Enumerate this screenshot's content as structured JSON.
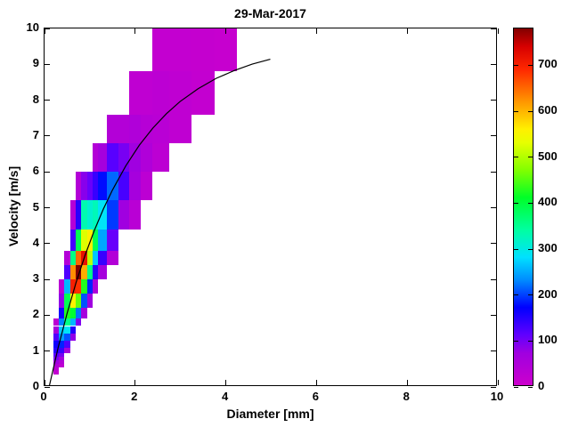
{
  "chart_data": {
    "type": "heatmap",
    "title": "29-Mar-2017",
    "xlabel": "Diameter [mm]",
    "ylabel": "Velocity [m/s]",
    "xlim": [
      0,
      10
    ],
    "ylim": [
      0,
      10
    ],
    "xticks": [
      0,
      2,
      4,
      6,
      8,
      10
    ],
    "yticks": [
      0,
      1,
      2,
      3,
      4,
      5,
      6,
      7,
      8,
      9,
      10
    ],
    "grid": false,
    "legend": "none",
    "colorbar": {
      "position": "right",
      "vmin": 0,
      "vmax": 780,
      "ticks": [
        0,
        100,
        200,
        300,
        400,
        500,
        600,
        700
      ]
    },
    "colormap_stops": [
      [
        0,
        204,
        0,
        204
      ],
      [
        70,
        160,
        0,
        224
      ],
      [
        110,
        96,
        0,
        255
      ],
      [
        170,
        0,
        0,
        255
      ],
      [
        230,
        0,
        140,
        255
      ],
      [
        280,
        0,
        225,
        255
      ],
      [
        340,
        0,
        255,
        160
      ],
      [
        410,
        0,
        255,
        40
      ],
      [
        470,
        130,
        255,
        0
      ],
      [
        530,
        230,
        255,
        0
      ],
      [
        560,
        255,
        240,
        0
      ],
      [
        620,
        255,
        150,
        0
      ],
      [
        690,
        255,
        40,
        0
      ],
      [
        740,
        215,
        0,
        0
      ],
      [
        780,
        130,
        0,
        0
      ]
    ],
    "cells": [
      [
        0.187,
        0.312,
        0.35,
        0.45,
        15
      ],
      [
        0.187,
        0.312,
        0.45,
        0.55,
        25
      ],
      [
        0.187,
        0.312,
        0.55,
        0.65,
        40
      ],
      [
        0.187,
        0.312,
        0.65,
        0.75,
        70
      ],
      [
        0.187,
        0.312,
        0.75,
        0.85,
        95
      ],
      [
        0.187,
        0.312,
        0.85,
        0.95,
        115
      ],
      [
        0.187,
        0.312,
        0.95,
        1.1,
        145
      ],
      [
        0.187,
        0.312,
        1.1,
        1.3,
        160
      ],
      [
        0.187,
        0.312,
        1.3,
        1.5,
        120
      ],
      [
        0.187,
        0.312,
        1.5,
        1.7,
        60
      ],
      [
        0.187,
        0.312,
        1.7,
        1.9,
        25
      ],
      [
        0.312,
        0.437,
        0.55,
        0.65,
        20
      ],
      [
        0.312,
        0.437,
        0.65,
        0.75,
        40
      ],
      [
        0.312,
        0.437,
        0.75,
        0.85,
        65
      ],
      [
        0.312,
        0.437,
        0.85,
        0.95,
        95
      ],
      [
        0.312,
        0.437,
        0.95,
        1.1,
        135
      ],
      [
        0.312,
        0.437,
        1.1,
        1.3,
        185
      ],
      [
        0.312,
        0.437,
        1.3,
        1.5,
        240
      ],
      [
        0.312,
        0.437,
        1.5,
        1.7,
        265
      ],
      [
        0.312,
        0.437,
        1.7,
        1.9,
        225
      ],
      [
        0.312,
        0.437,
        1.9,
        2.2,
        160
      ],
      [
        0.312,
        0.437,
        2.2,
        2.6,
        80
      ],
      [
        0.312,
        0.437,
        2.6,
        3.0,
        30
      ],
      [
        0.437,
        0.562,
        0.95,
        1.1,
        60
      ],
      [
        0.437,
        0.562,
        1.1,
        1.3,
        120
      ],
      [
        0.437,
        0.562,
        1.3,
        1.5,
        205
      ],
      [
        0.437,
        0.562,
        1.5,
        1.7,
        285
      ],
      [
        0.437,
        0.562,
        1.7,
        1.9,
        355
      ],
      [
        0.437,
        0.562,
        1.9,
        2.2,
        425
      ],
      [
        0.437,
        0.562,
        2.2,
        2.6,
        385
      ],
      [
        0.437,
        0.562,
        2.6,
        3.0,
        255
      ],
      [
        0.437,
        0.562,
        3.0,
        3.4,
        120
      ],
      [
        0.437,
        0.562,
        3.4,
        3.8,
        40
      ],
      [
        0.562,
        0.687,
        1.3,
        1.5,
        80
      ],
      [
        0.562,
        0.687,
        1.5,
        1.7,
        150
      ],
      [
        0.562,
        0.687,
        1.7,
        1.9,
        255
      ],
      [
        0.562,
        0.687,
        1.9,
        2.2,
        405
      ],
      [
        0.562,
        0.687,
        2.2,
        2.6,
        555
      ],
      [
        0.562,
        0.687,
        2.6,
        3.0,
        700
      ],
      [
        0.562,
        0.687,
        3.0,
        3.4,
        625
      ],
      [
        0.562,
        0.687,
        3.4,
        3.8,
        355
      ],
      [
        0.562,
        0.687,
        3.8,
        4.4,
        125
      ],
      [
        0.562,
        0.687,
        4.4,
        5.2,
        35
      ],
      [
        0.687,
        0.812,
        1.7,
        1.9,
        90
      ],
      [
        0.687,
        0.812,
        1.9,
        2.2,
        220
      ],
      [
        0.687,
        0.812,
        2.2,
        2.6,
        455
      ],
      [
        0.687,
        0.812,
        2.6,
        3.0,
        685
      ],
      [
        0.687,
        0.812,
        3.0,
        3.4,
        780
      ],
      [
        0.687,
        0.812,
        3.4,
        3.8,
        650
      ],
      [
        0.687,
        0.812,
        3.8,
        4.4,
        385
      ],
      [
        0.687,
        0.812,
        4.4,
        5.2,
        145
      ],
      [
        0.687,
        0.812,
        5.2,
        6.0,
        40
      ],
      [
        0.812,
        0.937,
        1.9,
        2.2,
        60
      ],
      [
        0.812,
        0.937,
        2.2,
        2.6,
        205
      ],
      [
        0.812,
        0.937,
        2.6,
        3.0,
        425
      ],
      [
        0.812,
        0.937,
        3.0,
        3.4,
        605
      ],
      [
        0.812,
        0.937,
        3.4,
        3.8,
        720
      ],
      [
        0.812,
        0.937,
        3.8,
        4.4,
        525
      ],
      [
        0.812,
        0.937,
        4.4,
        5.2,
        330
      ],
      [
        0.812,
        0.937,
        5.2,
        6.0,
        85
      ],
      [
        0.937,
        1.062,
        2.2,
        2.6,
        70
      ],
      [
        0.937,
        1.062,
        2.6,
        3.0,
        185
      ],
      [
        0.937,
        1.062,
        3.0,
        3.4,
        355
      ],
      [
        0.937,
        1.062,
        3.4,
        3.8,
        505
      ],
      [
        0.937,
        1.062,
        3.8,
        4.4,
        560
      ],
      [
        0.937,
        1.062,
        4.4,
        5.2,
        310
      ],
      [
        0.937,
        1.062,
        5.2,
        6.0,
        105
      ],
      [
        1.062,
        1.187,
        2.6,
        3.0,
        50
      ],
      [
        1.062,
        1.187,
        3.0,
        3.4,
        145
      ],
      [
        1.062,
        1.187,
        3.4,
        3.8,
        265
      ],
      [
        1.062,
        1.187,
        3.8,
        4.4,
        385
      ],
      [
        1.062,
        1.187,
        4.4,
        5.2,
        325
      ],
      [
        1.062,
        1.187,
        5.2,
        6.0,
        135
      ],
      [
        1.062,
        1.187,
        6.0,
        6.8,
        40
      ],
      [
        1.187,
        1.375,
        3.0,
        3.4,
        60
      ],
      [
        1.187,
        1.375,
        3.4,
        3.8,
        135
      ],
      [
        1.187,
        1.375,
        3.8,
        4.4,
        245
      ],
      [
        1.187,
        1.375,
        4.4,
        5.2,
        285
      ],
      [
        1.187,
        1.375,
        5.2,
        6.0,
        175
      ],
      [
        1.187,
        1.375,
        6.0,
        6.8,
        60
      ],
      [
        1.375,
        1.625,
        3.4,
        3.8,
        40
      ],
      [
        1.375,
        1.625,
        3.8,
        4.4,
        105
      ],
      [
        1.375,
        1.625,
        4.4,
        5.2,
        195
      ],
      [
        1.375,
        1.625,
        5.2,
        6.0,
        215
      ],
      [
        1.375,
        1.625,
        6.0,
        6.8,
        115
      ],
      [
        1.375,
        1.625,
        6.8,
        7.6,
        40
      ],
      [
        1.625,
        1.875,
        4.4,
        5.2,
        70
      ],
      [
        1.625,
        1.875,
        5.2,
        6.0,
        125
      ],
      [
        1.625,
        1.875,
        6.0,
        6.8,
        95
      ],
      [
        1.625,
        1.875,
        6.8,
        7.6,
        40
      ],
      [
        1.875,
        2.125,
        4.4,
        5.2,
        30
      ],
      [
        1.875,
        2.125,
        5.2,
        6.0,
        60
      ],
      [
        1.875,
        2.125,
        6.0,
        6.8,
        70
      ],
      [
        1.875,
        2.125,
        6.8,
        7.6,
        45
      ],
      [
        1.875,
        2.125,
        7.6,
        8.8,
        20
      ],
      [
        2.125,
        2.375,
        5.2,
        6.0,
        25
      ],
      [
        2.125,
        2.375,
        6.0,
        6.8,
        45
      ],
      [
        2.125,
        2.375,
        6.8,
        7.6,
        35
      ],
      [
        2.125,
        2.375,
        7.6,
        8.8,
        20
      ],
      [
        2.375,
        2.75,
        6.0,
        6.8,
        25
      ],
      [
        2.375,
        2.75,
        6.8,
        7.6,
        30
      ],
      [
        2.375,
        2.75,
        7.6,
        8.8,
        25
      ],
      [
        2.375,
        2.75,
        8.8,
        10.0,
        15
      ],
      [
        2.75,
        3.25,
        6.8,
        7.6,
        20
      ],
      [
        2.75,
        3.25,
        7.6,
        8.8,
        20
      ],
      [
        2.75,
        3.25,
        8.8,
        10.0,
        15
      ],
      [
        3.25,
        3.75,
        7.6,
        8.8,
        15
      ],
      [
        3.25,
        3.75,
        8.8,
        10.0,
        12
      ],
      [
        3.75,
        4.25,
        8.8,
        10.0,
        10
      ]
    ],
    "curve": {
      "name": "terminal-velocity-curve",
      "color": "#000000",
      "points": [
        [
          0.11,
          0
        ],
        [
          0.3,
          1.05
        ],
        [
          0.5,
          2.02
        ],
        [
          0.7,
          2.88
        ],
        [
          0.9,
          3.65
        ],
        [
          1.1,
          4.33
        ],
        [
          1.3,
          4.93
        ],
        [
          1.5,
          5.46
        ],
        [
          1.8,
          6.15
        ],
        [
          2.1,
          6.73
        ],
        [
          2.4,
          7.21
        ],
        [
          2.7,
          7.61
        ],
        [
          3.0,
          7.95
        ],
        [
          3.4,
          8.31
        ],
        [
          3.8,
          8.6
        ],
        [
          4.2,
          8.82
        ],
        [
          4.6,
          9.0
        ],
        [
          5.0,
          9.14
        ]
      ]
    }
  }
}
